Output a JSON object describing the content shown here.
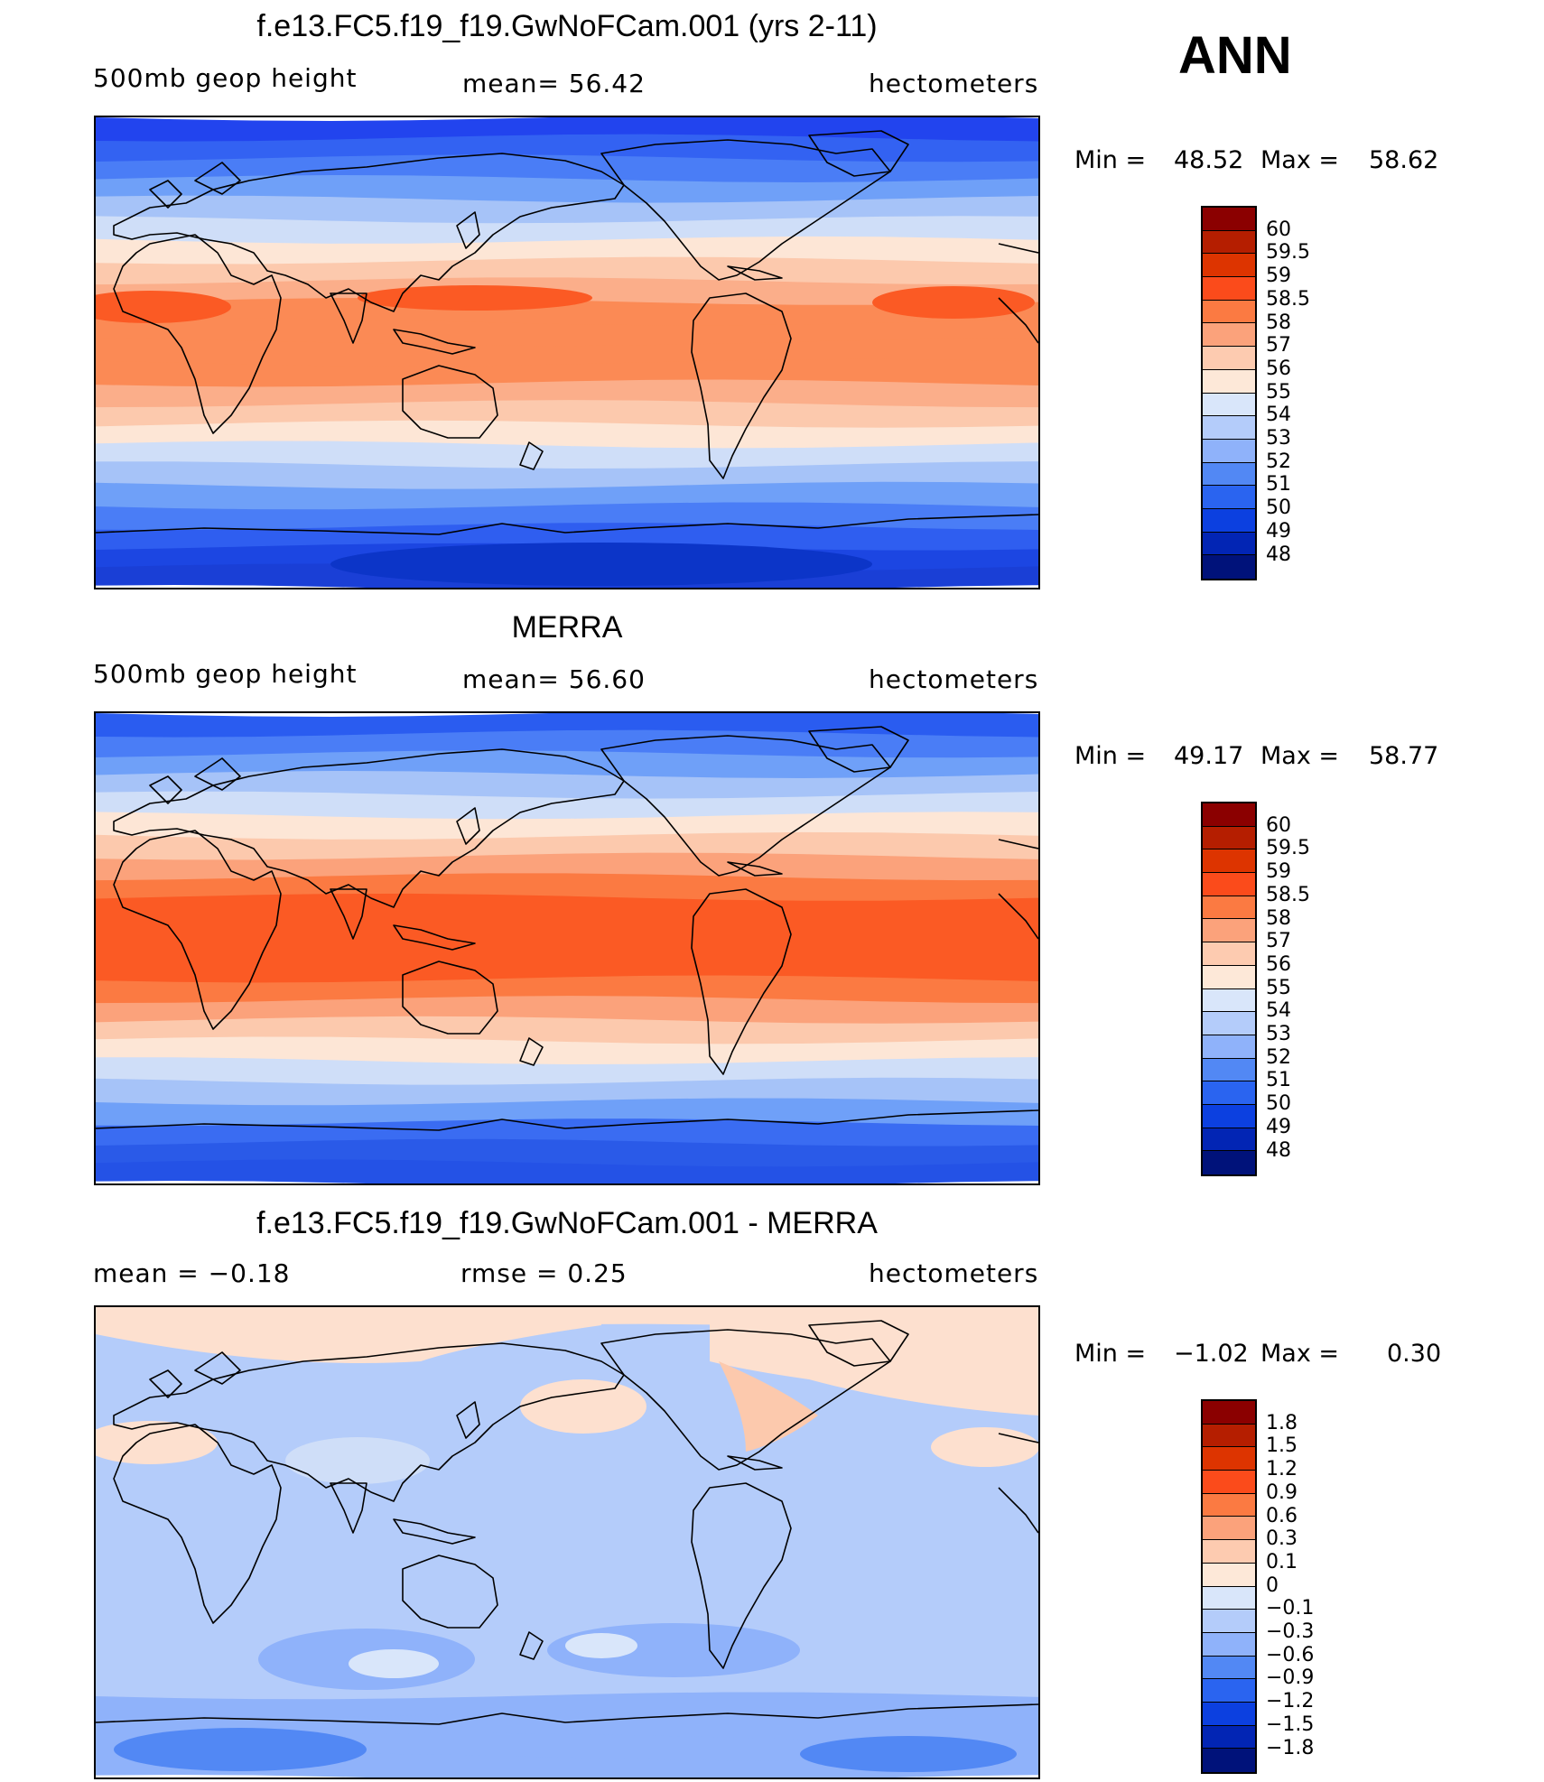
{
  "season": "ANN",
  "units": "hectometers",
  "panels": [
    {
      "id": "model",
      "title": "f.e13.FC5.f19_f19.GwNoFCam.001 (yrs 2-11)",
      "left_label": "500mb  geop  height",
      "center_label": "mean=   56.42",
      "right_label": "hectometers",
      "min_label": "Min  =",
      "min_value": "48.52",
      "max_label": "Max  =",
      "max_value": "58.62",
      "levels": [
        "60",
        "59.5",
        "59",
        "58.5",
        "58",
        "57",
        "56",
        "55",
        "54",
        "53",
        "52",
        "51",
        "50",
        "49",
        "48"
      ],
      "colors": [
        "#8b0000",
        "#b51e00",
        "#dd3400",
        "#fb4b1b",
        "#fb7a42",
        "#fba27b",
        "#fdcbb0",
        "#fde8d8",
        "#d9e6fa",
        "#b4ccfa",
        "#8fb2fa",
        "#5288f4",
        "#2a64f0",
        "#0c40e0",
        "#0225b4",
        "#00127a"
      ],
      "bands": [
        "#2244ee",
        "#3362f2",
        "#4a7df6",
        "#6fa0f8",
        "#a6c3f8",
        "#cfdef8",
        "#fde6d6",
        "#fcc9ad",
        "#fbae8a",
        "#fb8a55",
        "#fb8a55",
        "#fb8a55",
        "#fb8a55",
        "#fbae8a",
        "#fcc9ad",
        "#fde6d6",
        "#cfdef8",
        "#a6c3f8",
        "#6fa0f8",
        "#4a7df6",
        "#2f5ef0",
        "#1c46e2",
        "#1a3fd6"
      ]
    },
    {
      "id": "obs",
      "title": "MERRA",
      "left_label": "500mb  geop  height",
      "center_label": "mean=   56.60",
      "right_label": "hectometers",
      "min_label": "Min  =",
      "min_value": "49.17",
      "max_label": "Max  =",
      "max_value": "58.77",
      "levels": [
        "60",
        "59.5",
        "59",
        "58.5",
        "58",
        "57",
        "56",
        "55",
        "54",
        "53",
        "52",
        "51",
        "50",
        "49",
        "48"
      ],
      "colors": [
        "#8b0000",
        "#b51e00",
        "#dd3400",
        "#fb4b1b",
        "#fb7a42",
        "#fba27b",
        "#fdcbb0",
        "#fde8d8",
        "#d9e6fa",
        "#b4ccfa",
        "#8fb2fa",
        "#5288f4",
        "#2a64f0",
        "#0c40e0",
        "#0225b4",
        "#00127a"
      ],
      "bands": [
        "#2a5cf0",
        "#4a7df6",
        "#6fa0f8",
        "#a6c3f8",
        "#cfdef8",
        "#fde6d6",
        "#fcc9ad",
        "#fba27b",
        "#fb7a42",
        "#fb5a24",
        "#fb5a24",
        "#fb5a24",
        "#fb5a24",
        "#fb7a42",
        "#fba27b",
        "#fcc9ad",
        "#fde6d6",
        "#cfdef8",
        "#a6c3f8",
        "#6fa0f8",
        "#3a6cf2",
        "#2a5ae8",
        "#2452e6"
      ]
    },
    {
      "id": "diff",
      "title": "f.e13.FC5.f19_f19.GwNoFCam.001 - MERRA",
      "left_label": "mean  =     −0.18",
      "center_label": "rmse  =      0.25",
      "right_label": "hectometers",
      "min_label": "Min  =",
      "min_value": "−1.02",
      "max_label": "Max  =",
      "max_value": "0.30",
      "levels": [
        "1.8",
        "1.5",
        "1.2",
        "0.9",
        "0.6",
        "0.3",
        "0.1",
        "0",
        "−0.1",
        "−0.3",
        "−0.6",
        "−0.9",
        "−1.2",
        "−1.5",
        "−1.8"
      ],
      "colors": [
        "#8b0000",
        "#b51e00",
        "#dd3400",
        "#fb4b1b",
        "#fb7a42",
        "#fba27b",
        "#fdcbb0",
        "#fde8d8",
        "#d9e6fa",
        "#b4ccfa",
        "#8fb2fa",
        "#5288f4",
        "#2a64f0",
        "#0c40e0",
        "#0225b4",
        "#00127a"
      ],
      "bands": [
        "#fde0cf",
        "#b4ccfa",
        "#b4ccfa",
        "#b4ccfa",
        "#b4ccfa",
        "#b4ccfa",
        "#b4ccfa",
        "#b4ccfa",
        "#b4ccfa",
        "#b4ccfa",
        "#b4ccfa",
        "#b4ccfa",
        "#b4ccfa",
        "#b4ccfa",
        "#b4ccfa",
        "#b4ccfa",
        "#b4ccfa",
        "#b4ccfa",
        "#b4ccfa",
        "#8fb2fa",
        "#8fb2fa",
        "#8fb2fa",
        "#8fb2fa"
      ]
    }
  ]
}
